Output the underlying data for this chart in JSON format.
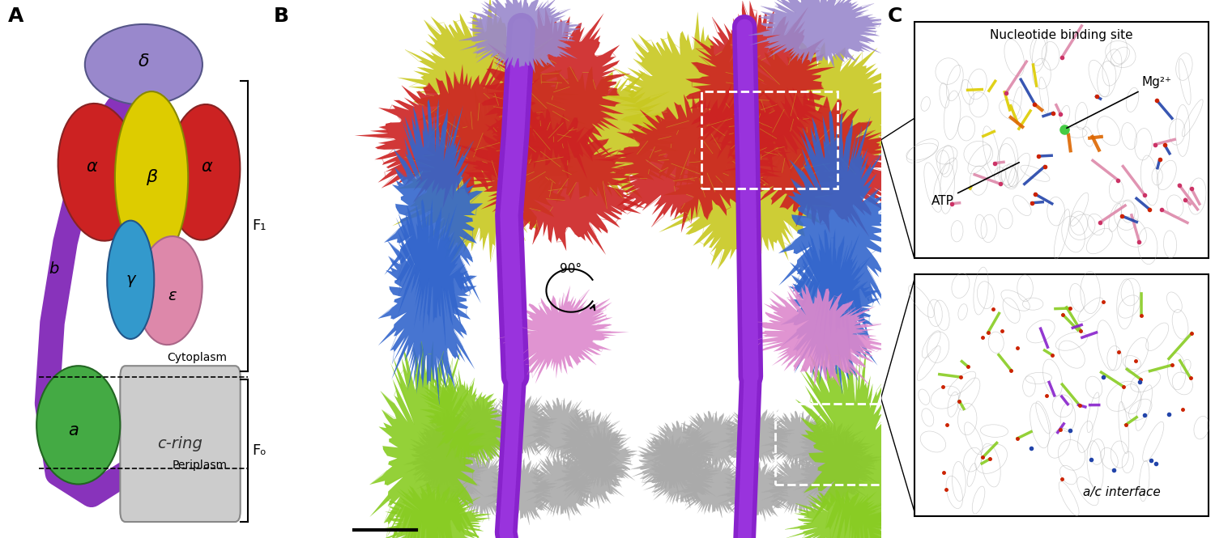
{
  "fig_width": 15.0,
  "fig_height": 6.65,
  "bg_color": "#ffffff",
  "panel_labels": [
    "A",
    "B",
    "C"
  ],
  "panel_label_fontsize": 18,
  "panel_label_weight": "bold",
  "colors": {
    "alpha": "#cc2222",
    "beta": "#ddcc00",
    "gamma": "#3399cc",
    "delta": "#9988cc",
    "epsilon": "#dd88aa",
    "b_stalk": "#8833bb",
    "a_subunit": "#44aa44",
    "c_ring": "#cccccc",
    "bracket": "#000000"
  },
  "labels": {
    "F1": "F₁",
    "Fo": "Fₒ",
    "Cytoplasm": "Cytoplasm",
    "Periplasm": "Periplasm",
    "alpha": "α",
    "beta": "β",
    "gamma": "γ",
    "delta": "δ",
    "epsilon": "ε",
    "b": "b",
    "a": "a",
    "c_ring": "c-ring",
    "nucleotide_site": "Nucleotide binding site",
    "mg2plus": "Mg²⁺",
    "atp": "ATP",
    "ac_interface": "a/c interface",
    "rotation": "90°"
  }
}
